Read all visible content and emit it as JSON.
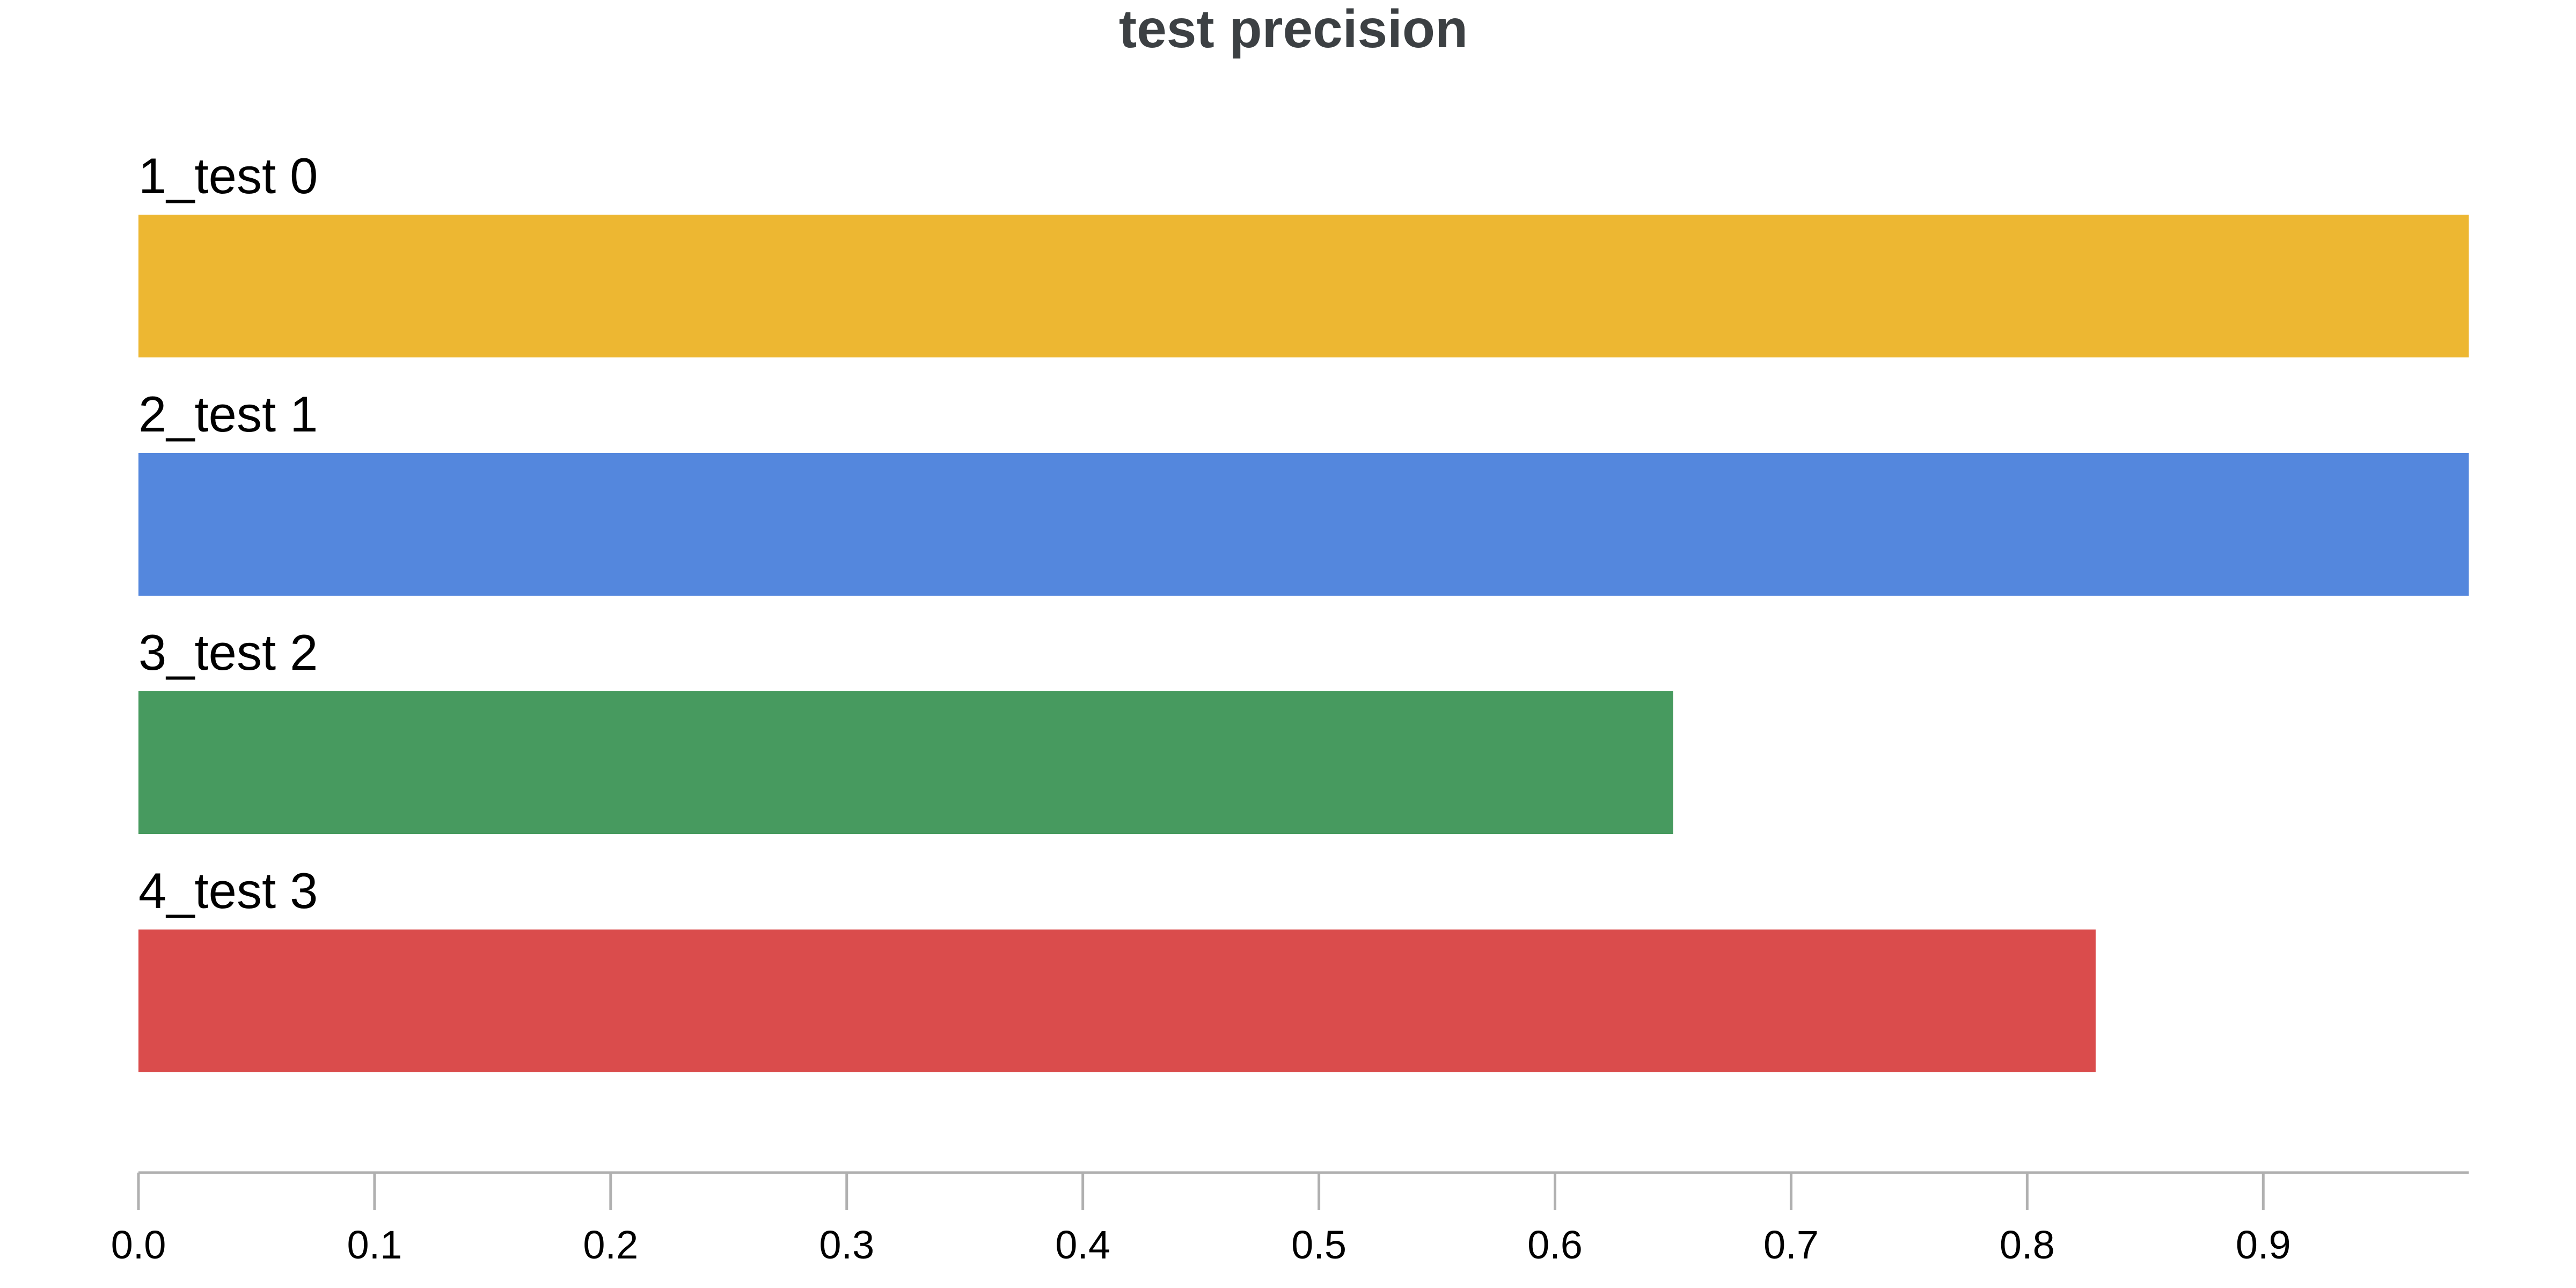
{
  "chart_data": {
    "type": "bar",
    "orientation": "horizontal",
    "title": "test precision",
    "xlabel": "",
    "ylabel": "",
    "categories": [
      "1_test 0",
      "2_test 1",
      "3_test 2",
      "4_test 3"
    ],
    "values": [
      0.987,
      0.987,
      0.65,
      0.829
    ],
    "colors": [
      "#edb732",
      "#5487dd",
      "#479a5f",
      "#da4c4c"
    ],
    "xlim": [
      0,
      0.987
    ],
    "xticks": [
      0.0,
      0.1,
      0.2,
      0.3,
      0.4,
      0.5,
      0.6,
      0.7,
      0.8,
      0.9
    ],
    "xtick_labels": [
      "0.0",
      "0.1",
      "0.2",
      "0.3",
      "0.4",
      "0.5",
      "0.6",
      "0.7",
      "0.8",
      "0.9"
    ],
    "grid": false,
    "legend": "none"
  }
}
